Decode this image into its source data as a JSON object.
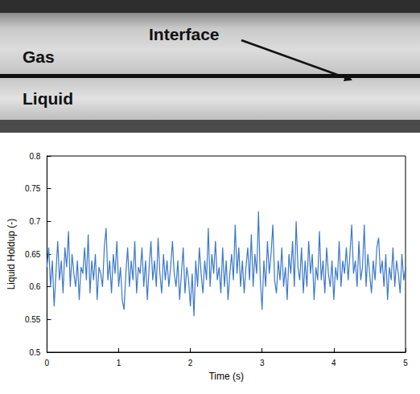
{
  "photo": {
    "gas": "Gas",
    "interface": "Interface",
    "liquid": "Liquid"
  },
  "chart_data": {
    "type": "line",
    "xlabel": "Time (s)",
    "ylabel": "Liquid Holdup (-)",
    "color": "#3a78c9",
    "grid": false,
    "xlim": [
      0,
      5
    ],
    "xticks": [
      0,
      1,
      2,
      3,
      4,
      5
    ],
    "ylim": [
      0.5,
      0.8
    ],
    "yticks": [
      0.5,
      0.55,
      0.6,
      0.65,
      0.7,
      0.75,
      0.8
    ],
    "x": [
      0,
      0.025,
      0.05,
      0.075,
      0.1,
      0.125,
      0.15,
      0.175,
      0.2,
      0.225,
      0.25,
      0.275,
      0.3,
      0.325,
      0.35,
      0.375,
      0.4,
      0.425,
      0.45,
      0.475,
      0.5,
      0.525,
      0.55,
      0.575,
      0.6,
      0.625,
      0.65,
      0.675,
      0.7,
      0.725,
      0.75,
      0.775,
      0.8,
      0.825,
      0.85,
      0.875,
      0.9,
      0.925,
      0.95,
      0.975,
      1,
      1.025,
      1.05,
      1.075,
      1.1,
      1.125,
      1.15,
      1.175,
      1.2,
      1.225,
      1.25,
      1.275,
      1.3,
      1.325,
      1.35,
      1.375,
      1.4,
      1.425,
      1.45,
      1.475,
      1.5,
      1.525,
      1.55,
      1.575,
      1.6,
      1.625,
      1.65,
      1.675,
      1.7,
      1.725,
      1.75,
      1.775,
      1.8,
      1.825,
      1.85,
      1.875,
      1.9,
      1.925,
      1.95,
      1.975,
      2,
      2.025,
      2.05,
      2.075,
      2.1,
      2.125,
      2.15,
      2.175,
      2.2,
      2.225,
      2.25,
      2.275,
      2.3,
      2.325,
      2.35,
      2.375,
      2.4,
      2.425,
      2.45,
      2.475,
      2.5,
      2.525,
      2.55,
      2.575,
      2.6,
      2.625,
      2.65,
      2.675,
      2.7,
      2.725,
      2.75,
      2.775,
      2.8,
      2.825,
      2.85,
      2.875,
      2.9,
      2.925,
      2.95,
      2.975,
      3,
      3.025,
      3.05,
      3.075,
      3.1,
      3.125,
      3.15,
      3.175,
      3.2,
      3.225,
      3.25,
      3.275,
      3.3,
      3.325,
      3.35,
      3.375,
      3.4,
      3.425,
      3.45,
      3.475,
      3.5,
      3.525,
      3.55,
      3.575,
      3.6,
      3.625,
      3.65,
      3.675,
      3.7,
      3.725,
      3.75,
      3.775,
      3.8,
      3.825,
      3.85,
      3.875,
      3.9,
      3.925,
      3.95,
      3.975,
      4,
      4.025,
      4.05,
      4.075,
      4.1,
      4.125,
      4.15,
      4.175,
      4.2,
      4.225,
      4.25,
      4.275,
      4.3,
      4.325,
      4.35,
      4.375,
      4.4,
      4.425,
      4.45,
      4.475,
      4.5,
      4.525,
      4.55,
      4.575,
      4.6,
      4.625,
      4.65,
      4.675,
      4.7,
      4.725,
      4.75,
      4.775,
      4.8,
      4.825,
      4.85,
      4.875,
      4.9,
      4.925,
      4.95,
      4.975,
      5
    ],
    "values": [
      0.63,
      0.66,
      0.6,
      0.64,
      0.57,
      0.62,
      0.67,
      0.61,
      0.64,
      0.59,
      0.66,
      0.63,
      0.685,
      0.6,
      0.65,
      0.62,
      0.6,
      0.64,
      0.58,
      0.63,
      0.62,
      0.66,
      0.61,
      0.68,
      0.59,
      0.64,
      0.61,
      0.65,
      0.58,
      0.63,
      0.62,
      0.6,
      0.66,
      0.69,
      0.61,
      0.64,
      0.59,
      0.65,
      0.62,
      0.67,
      0.6,
      0.63,
      0.58,
      0.565,
      0.62,
      0.66,
      0.6,
      0.64,
      0.61,
      0.67,
      0.59,
      0.63,
      0.62,
      0.66,
      0.6,
      0.64,
      0.58,
      0.63,
      0.67,
      0.61,
      0.64,
      0.6,
      0.675,
      0.62,
      0.59,
      0.65,
      0.61,
      0.64,
      0.6,
      0.63,
      0.67,
      0.62,
      0.6,
      0.64,
      0.58,
      0.62,
      0.66,
      0.59,
      0.63,
      0.61,
      0.57,
      0.62,
      0.555,
      0.64,
      0.6,
      0.66,
      0.62,
      0.59,
      0.64,
      0.61,
      0.69,
      0.6,
      0.65,
      0.62,
      0.67,
      0.61,
      0.63,
      0.59,
      0.66,
      0.6,
      0.64,
      0.58,
      0.62,
      0.65,
      0.61,
      0.695,
      0.62,
      0.66,
      0.6,
      0.64,
      0.59,
      0.63,
      0.66,
      0.61,
      0.68,
      0.6,
      0.65,
      0.62,
      0.715,
      0.61,
      0.565,
      0.64,
      0.6,
      0.67,
      0.62,
      0.65,
      0.695,
      0.61,
      0.59,
      0.64,
      0.61,
      0.66,
      0.6,
      0.63,
      0.58,
      0.65,
      0.62,
      0.67,
      0.6,
      0.7,
      0.63,
      0.61,
      0.66,
      0.59,
      0.64,
      0.6,
      0.67,
      0.62,
      0.65,
      0.58,
      0.63,
      0.61,
      0.685,
      0.61,
      0.64,
      0.59,
      0.66,
      0.62,
      0.6,
      0.64,
      0.58,
      0.63,
      0.61,
      0.67,
      0.6,
      0.64,
      0.62,
      0.66,
      0.61,
      0.65,
      0.695,
      0.62,
      0.64,
      0.6,
      0.67,
      0.61,
      0.63,
      0.695,
      0.6,
      0.65,
      0.62,
      0.59,
      0.64,
      0.61,
      0.66,
      0.675,
      0.62,
      0.64,
      0.6,
      0.65,
      0.58,
      0.63,
      0.61,
      0.66,
      0.6,
      0.64,
      0.62,
      0.59,
      0.65,
      0.61,
      0.63
    ]
  }
}
